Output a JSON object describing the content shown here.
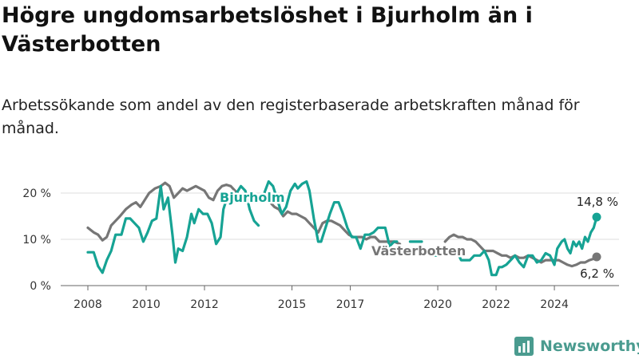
{
  "header": {
    "title": "Högre ungdomsarbetslöshet i Bjurholm än i Västerbotten",
    "subtitle": "Arbetssökande som andel av den registerbaserade arbetskraften månad för månad."
  },
  "brand": {
    "name": "Newsworthy",
    "icon": "newsworthy-logo-icon"
  },
  "colors": {
    "bjurholm": "#16a394",
    "vasterbotten": "#767676",
    "grid": "#dcdcdc"
  },
  "chart_data": {
    "type": "line",
    "x_unit": "year (fractional)",
    "xlim": [
      2007.4,
      2025.5
    ],
    "ylim": [
      0,
      22
    ],
    "x_ticks": [
      {
        "value": 2008,
        "label": "2008"
      },
      {
        "value": 2010,
        "label": "2010"
      },
      {
        "value": 2012,
        "label": "2012"
      },
      {
        "value": 2015,
        "label": "2015"
      },
      {
        "value": 2017,
        "label": "2017"
      },
      {
        "value": 2020,
        "label": "2020"
      },
      {
        "value": 2022,
        "label": "2022"
      },
      {
        "value": 2024,
        "label": "2024"
      }
    ],
    "y_ticks": [
      {
        "value": 0,
        "label": "0 %"
      },
      {
        "value": 10,
        "label": "10 %"
      },
      {
        "value": 20,
        "label": "20 %"
      }
    ],
    "grid": true,
    "series": [
      {
        "name": "Bjurholm",
        "color": "#16a394",
        "end_label": "14,8 %",
        "segments": [
          [
            [
              2008.0,
              7.2
            ],
            [
              2008.2,
              7.2
            ],
            [
              2008.35,
              4.2
            ],
            [
              2008.5,
              2.8
            ],
            [
              2008.65,
              5.5
            ],
            [
              2008.8,
              7.5
            ],
            [
              2008.95,
              11.0
            ],
            [
              2009.15,
              11.0
            ],
            [
              2009.3,
              14.5
            ],
            [
              2009.45,
              14.5
            ],
            [
              2009.6,
              13.5
            ],
            [
              2009.75,
              12.5
            ],
            [
              2009.9,
              9.5
            ],
            [
              2010.05,
              11.5
            ],
            [
              2010.2,
              14.0
            ],
            [
              2010.35,
              14.5
            ],
            [
              2010.5,
              21.5
            ],
            [
              2010.6,
              16.5
            ],
            [
              2010.75,
              19.0
            ],
            [
              2010.9,
              11.0
            ],
            [
              2011.0,
              5.0
            ],
            [
              2011.1,
              8.0
            ],
            [
              2011.25,
              7.5
            ],
            [
              2011.4,
              10.5
            ],
            [
              2011.55,
              15.5
            ],
            [
              2011.65,
              13.5
            ],
            [
              2011.8,
              16.5
            ],
            [
              2011.95,
              15.5
            ],
            [
              2012.1,
              15.5
            ],
            [
              2012.25,
              13.5
            ],
            [
              2012.4,
              9.0
            ],
            [
              2012.55,
              10.5
            ],
            [
              2012.65,
              16.5
            ],
            [
              2012.8,
              19.5
            ],
            [
              2012.95,
              18.5
            ],
            [
              2013.1,
              20.0
            ],
            [
              2013.25,
              21.5
            ],
            [
              2013.4,
              20.5
            ],
            [
              2013.55,
              16.5
            ],
            [
              2013.7,
              14.0
            ],
            [
              2013.85,
              13.0
            ]
          ],
          [
            [
              2014.05,
              20.0
            ],
            [
              2014.2,
              22.5
            ],
            [
              2014.35,
              21.5
            ],
            [
              2014.5,
              18.5
            ],
            [
              2014.65,
              15.5
            ],
            [
              2014.8,
              17.0
            ],
            [
              2014.95,
              20.5
            ],
            [
              2015.1,
              22.0
            ],
            [
              2015.2,
              21.0
            ],
            [
              2015.35,
              22.0
            ],
            [
              2015.5,
              22.5
            ],
            [
              2015.6,
              20.5
            ],
            [
              2015.75,
              14.5
            ],
            [
              2015.9,
              9.5
            ],
            [
              2016.0,
              9.5
            ],
            [
              2016.15,
              12.5
            ],
            [
              2016.3,
              15.5
            ],
            [
              2016.45,
              18.0
            ],
            [
              2016.6,
              18.0
            ],
            [
              2016.75,
              15.5
            ],
            [
              2016.9,
              12.5
            ],
            [
              2017.05,
              10.5
            ],
            [
              2017.2,
              10.5
            ],
            [
              2017.35,
              8.0
            ],
            [
              2017.5,
              11.0
            ],
            [
              2017.65,
              11.0
            ],
            [
              2017.8,
              11.5
            ],
            [
              2017.95,
              12.5
            ],
            [
              2018.1,
              12.5
            ],
            [
              2018.2,
              12.5
            ],
            [
              2018.35,
              8.5
            ],
            [
              2018.5,
              9.5
            ],
            [
              2018.6,
              9.5
            ]
          ],
          [
            [
              2019.05,
              9.5
            ],
            [
              2019.3,
              9.5
            ],
            [
              2019.45,
              9.5
            ]
          ],
          [
            [
              2019.9,
              6.5
            ],
            [
              2020.05,
              6.5
            ],
            [
              2020.2,
              8.5
            ]
          ],
          [
            [
              2020.65,
              7.5
            ],
            [
              2020.8,
              5.5
            ],
            [
              2020.95,
              5.5
            ],
            [
              2021.1,
              5.5
            ],
            [
              2021.25,
              6.5
            ],
            [
              2021.45,
              6.5
            ],
            [
              2021.6,
              7.5
            ],
            [
              2021.75,
              5.5
            ],
            [
              2021.85,
              2.3
            ],
            [
              2022.0,
              2.3
            ],
            [
              2022.1,
              4.0
            ],
            [
              2022.2,
              4.0
            ],
            [
              2022.35,
              4.5
            ],
            [
              2022.5,
              5.5
            ],
            [
              2022.65,
              6.5
            ],
            [
              2022.8,
              5.0
            ],
            [
              2022.95,
              4.0
            ],
            [
              2023.1,
              6.5
            ],
            [
              2023.25,
              6.5
            ],
            [
              2023.4,
              5.0
            ],
            [
              2023.55,
              5.5
            ],
            [
              2023.7,
              7.0
            ],
            [
              2023.85,
              6.5
            ],
            [
              2024.0,
              4.5
            ],
            [
              2024.1,
              8.0
            ],
            [
              2024.25,
              9.5
            ],
            [
              2024.35,
              10.0
            ],
            [
              2024.45,
              8.0
            ],
            [
              2024.55,
              7.0
            ],
            [
              2024.65,
              9.5
            ],
            [
              2024.75,
              8.5
            ],
            [
              2024.85,
              9.5
            ],
            [
              2024.95,
              8.0
            ],
            [
              2025.05,
              10.5
            ],
            [
              2025.15,
              9.5
            ],
            [
              2025.25,
              11.5
            ],
            [
              2025.35,
              12.5
            ],
            [
              2025.45,
              14.8
            ]
          ]
        ]
      },
      {
        "name": "Västerbotten",
        "color": "#767676",
        "end_label": "6,2 %",
        "segments": [
          [
            [
              2008.0,
              12.5
            ],
            [
              2008.2,
              11.5
            ],
            [
              2008.35,
              11.0
            ],
            [
              2008.5,
              9.8
            ],
            [
              2008.65,
              10.5
            ],
            [
              2008.8,
              13.0
            ],
            [
              2008.95,
              14.0
            ],
            [
              2009.1,
              15.0
            ],
            [
              2009.3,
              16.5
            ],
            [
              2009.5,
              17.5
            ],
            [
              2009.65,
              18.0
            ],
            [
              2009.8,
              17.0
            ],
            [
              2009.95,
              18.5
            ],
            [
              2010.1,
              20.0
            ],
            [
              2010.3,
              21.0
            ],
            [
              2010.5,
              21.5
            ],
            [
              2010.65,
              22.2
            ],
            [
              2010.8,
              21.5
            ],
            [
              2010.95,
              19.0
            ],
            [
              2011.1,
              20.0
            ],
            [
              2011.25,
              21.0
            ],
            [
              2011.4,
              20.5
            ],
            [
              2011.55,
              21.0
            ],
            [
              2011.7,
              21.5
            ],
            [
              2011.85,
              21.0
            ],
            [
              2012.0,
              20.5
            ],
            [
              2012.15,
              19.0
            ],
            [
              2012.3,
              18.5
            ],
            [
              2012.45,
              20.5
            ],
            [
              2012.6,
              21.5
            ],
            [
              2012.75,
              21.8
            ],
            [
              2012.9,
              21.5
            ],
            [
              2013.05,
              20.5
            ],
            [
              2013.2,
              19.5
            ],
            [
              2013.35,
              19.8
            ],
            [
              2013.5,
              19.0
            ],
            [
              2013.65,
              18.5
            ],
            [
              2013.8,
              18.0
            ],
            [
              2013.95,
              19.0
            ],
            [
              2014.1,
              19.5
            ],
            [
              2014.25,
              18.0
            ],
            [
              2014.4,
              17.0
            ],
            [
              2014.55,
              16.5
            ],
            [
              2014.7,
              15.0
            ],
            [
              2014.85,
              16.0
            ],
            [
              2015.0,
              15.5
            ],
            [
              2015.15,
              15.5
            ],
            [
              2015.3,
              15.0
            ],
            [
              2015.45,
              14.5
            ],
            [
              2015.6,
              13.5
            ],
            [
              2015.75,
              12.5
            ],
            [
              2015.9,
              11.5
            ],
            [
              2016.05,
              13.5
            ],
            [
              2016.2,
              14.0
            ],
            [
              2016.35,
              14.0
            ],
            [
              2016.5,
              13.5
            ],
            [
              2016.65,
              13.0
            ],
            [
              2016.8,
              12.0
            ],
            [
              2016.95,
              11.0
            ],
            [
              2017.1,
              10.5
            ],
            [
              2017.25,
              10.5
            ],
            [
              2017.4,
              10.5
            ],
            [
              2017.55,
              10.0
            ],
            [
              2017.7,
              10.5
            ],
            [
              2017.85,
              10.5
            ],
            [
              2018.0,
              9.5
            ],
            [
              2018.15,
              9.5
            ],
            [
              2018.3,
              9.5
            ],
            [
              2018.5,
              9.5
            ],
            [
              2018.7,
              9.0
            ]
          ],
          [
            [
              2020.25,
              9.5
            ],
            [
              2020.4,
              10.5
            ],
            [
              2020.55,
              11.0
            ],
            [
              2020.7,
              10.5
            ],
            [
              2020.85,
              10.5
            ],
            [
              2021.0,
              10.0
            ],
            [
              2021.15,
              10.0
            ],
            [
              2021.3,
              9.5
            ],
            [
              2021.45,
              8.5
            ],
            [
              2021.6,
              7.5
            ],
            [
              2021.75,
              7.5
            ],
            [
              2021.9,
              7.5
            ],
            [
              2022.05,
              7.0
            ],
            [
              2022.2,
              6.5
            ],
            [
              2022.35,
              6.5
            ],
            [
              2022.5,
              6.0
            ],
            [
              2022.65,
              6.5
            ],
            [
              2022.8,
              6.0
            ],
            [
              2022.95,
              6.0
            ],
            [
              2023.1,
              6.5
            ],
            [
              2023.25,
              6.0
            ],
            [
              2023.4,
              5.5
            ],
            [
              2023.55,
              5.0
            ],
            [
              2023.7,
              5.5
            ],
            [
              2023.85,
              5.5
            ],
            [
              2024.0,
              5.5
            ],
            [
              2024.15,
              5.5
            ],
            [
              2024.3,
              5.0
            ],
            [
              2024.45,
              4.5
            ],
            [
              2024.6,
              4.2
            ],
            [
              2024.75,
              4.5
            ],
            [
              2024.9,
              5.0
            ],
            [
              2025.05,
              5.0
            ],
            [
              2025.2,
              5.5
            ],
            [
              2025.35,
              5.8
            ],
            [
              2025.45,
              6.2
            ]
          ]
        ]
      }
    ]
  }
}
